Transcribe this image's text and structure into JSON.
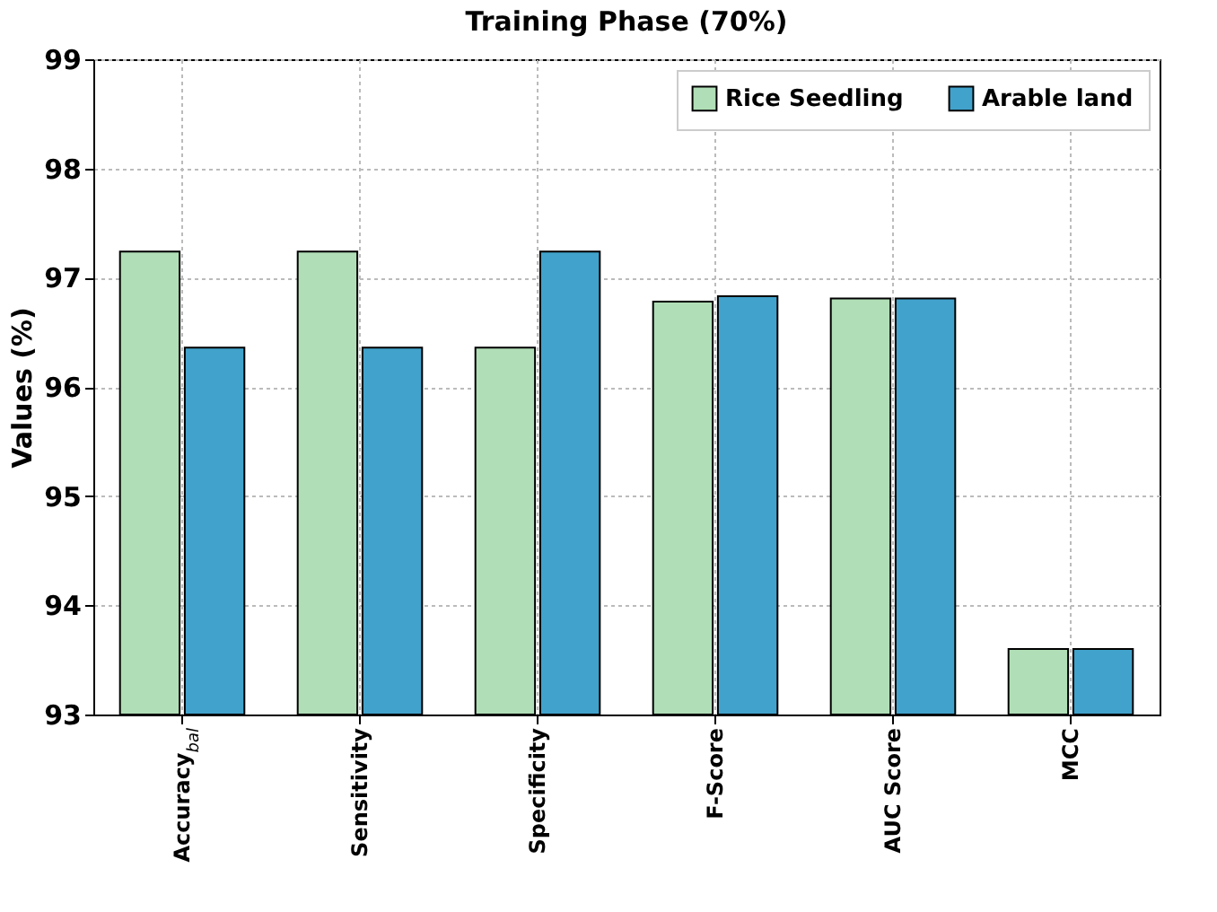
{
  "chart_data": {
    "type": "bar",
    "title": "Training Phase (70%)",
    "ylabel": "Values (%)",
    "categories": [
      "Accuracy$_{bal}$",
      "Sensitivity",
      "Specificity",
      "F-Score",
      "AUC Score",
      "MCC"
    ],
    "series": [
      {
        "name": "Rice Seedling",
        "color": "#b0deb6",
        "values": [
          97.24,
          97.24,
          96.36,
          96.78,
          96.81,
          93.6
        ]
      },
      {
        "name": "Arable land",
        "color": "#41a2cb",
        "values": [
          96.36,
          96.36,
          97.24,
          96.83,
          96.81,
          93.6
        ]
      }
    ],
    "ylim": [
      93,
      99
    ],
    "yticks": [
      93,
      94,
      95,
      96,
      97,
      98,
      99
    ],
    "grid": true,
    "legend": "top right"
  }
}
